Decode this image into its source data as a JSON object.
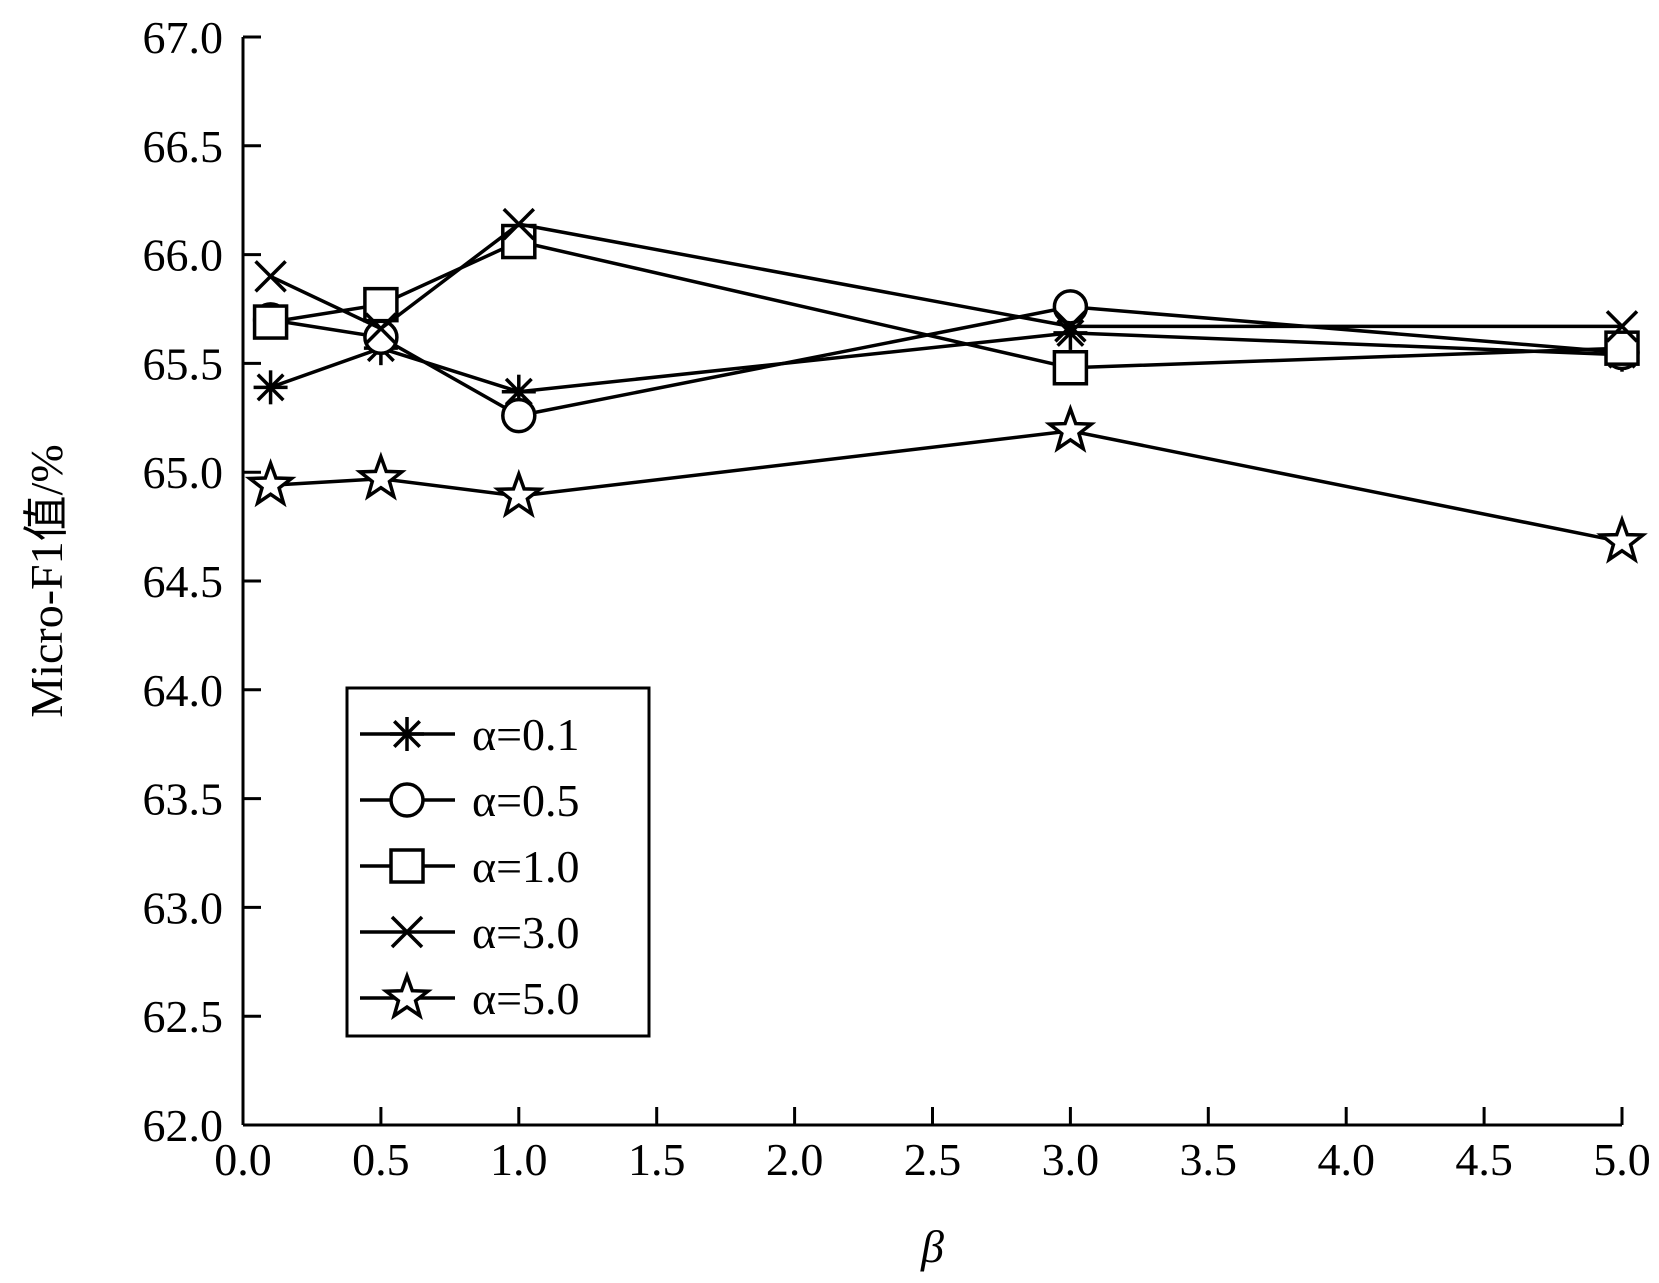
{
  "chart_data": {
    "type": "line",
    "title": "",
    "xlabel": "β",
    "ylabel": "Micro-F1值/%",
    "xlim": [
      0.0,
      5.0
    ],
    "ylim": [
      62.0,
      67.0
    ],
    "x_ticks": [
      "0.0",
      "0.5",
      "1.0",
      "1.5",
      "2.0",
      "2.5",
      "3.0",
      "3.5",
      "4.0",
      "4.5",
      "5.0"
    ],
    "y_ticks": [
      "62.0",
      "62.5",
      "63.0",
      "63.5",
      "64.0",
      "64.5",
      "65.0",
      "65.5",
      "66.0",
      "66.5",
      "67.0"
    ],
    "x_tick_values": [
      0.0,
      0.5,
      1.0,
      1.5,
      2.0,
      2.5,
      3.0,
      3.5,
      4.0,
      4.5,
      5.0
    ],
    "y_tick_values": [
      62.0,
      62.5,
      63.0,
      63.5,
      64.0,
      64.5,
      65.0,
      65.5,
      66.0,
      66.5,
      67.0
    ],
    "x": [
      0.1,
      0.5,
      1.0,
      3.0,
      5.0
    ],
    "legend_position": "lower-left",
    "grid": false,
    "series": [
      {
        "name": "α=0.1",
        "marker": "asterisk",
        "values": [
          65.39,
          65.57,
          65.37,
          65.64,
          65.54
        ]
      },
      {
        "name": "α=0.5",
        "marker": "circle",
        "values": [
          65.7,
          65.62,
          65.26,
          65.76,
          65.55
        ]
      },
      {
        "name": "α=1.0",
        "marker": "square",
        "values": [
          65.69,
          65.77,
          66.06,
          65.48,
          65.57
        ]
      },
      {
        "name": "α=3.0",
        "marker": "x",
        "values": [
          65.9,
          65.66,
          66.14,
          65.67,
          65.67
        ]
      },
      {
        "name": "α=5.0",
        "marker": "star",
        "values": [
          64.94,
          64.97,
          64.89,
          65.19,
          64.68
        ]
      }
    ],
    "colors": {
      "line": "#000000",
      "background": "#ffffff"
    }
  }
}
